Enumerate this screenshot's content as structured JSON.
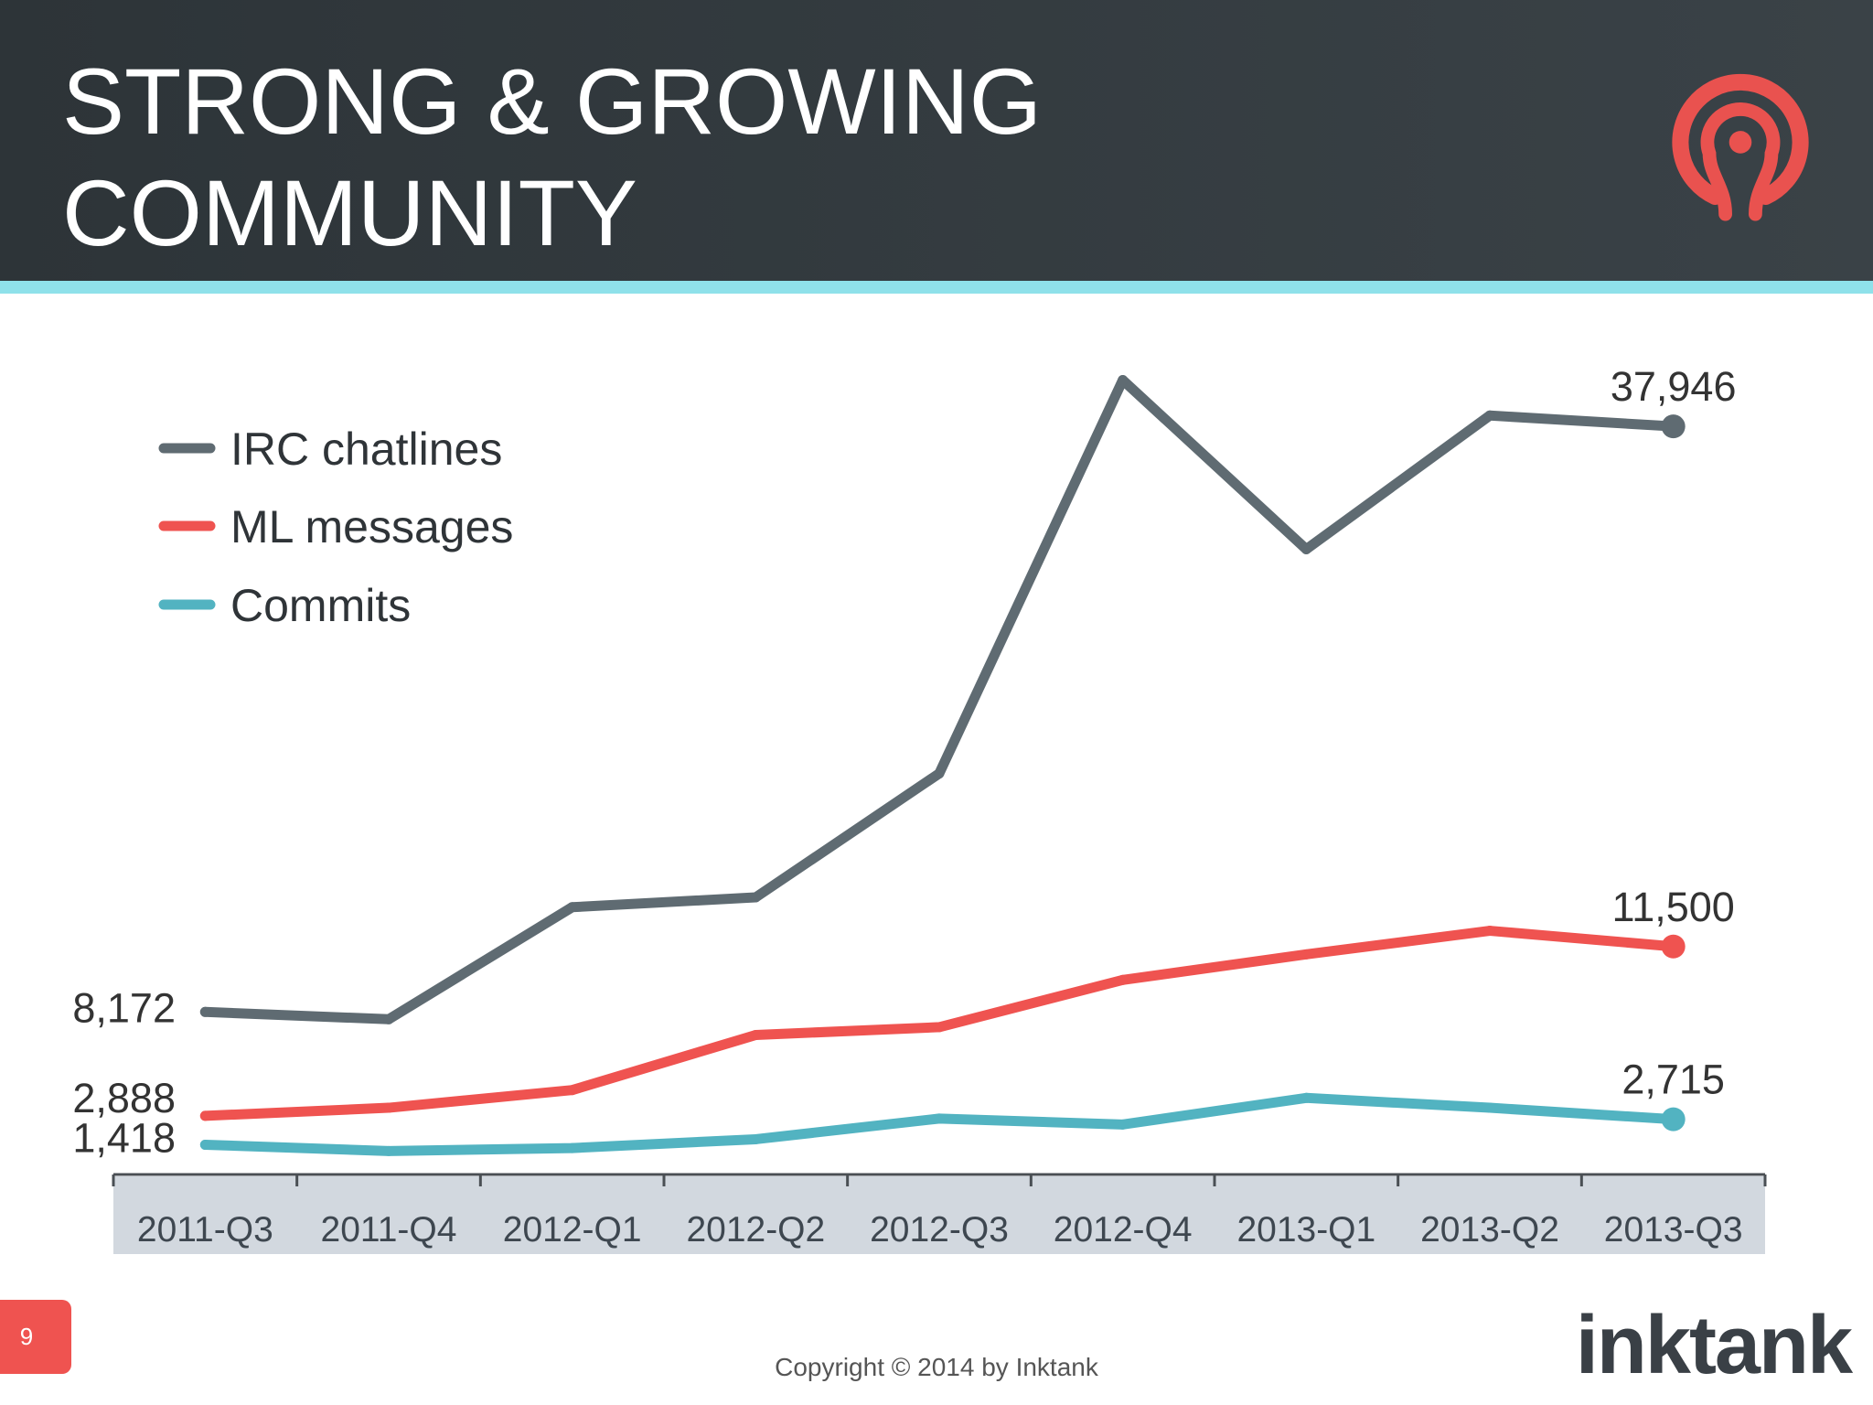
{
  "slide": {
    "title_lines": [
      "STRONG & GROWING",
      "COMMUNITY"
    ],
    "logo_icon": "ceph-logo-icon",
    "page_number": "9",
    "copyright": "Copyright © 2014 by Inktank",
    "brand_wordmark": "inktank",
    "colors": {
      "header_bg": "#323a3f",
      "accent_stripe": "#8fe1ea",
      "logo": "#e9524f",
      "page_badge": "#ef5350",
      "axis_band": "#d2d8df",
      "axis_line": "#4a4f54"
    }
  },
  "chart_data": {
    "type": "line",
    "categories": [
      "2011-Q3",
      "2011-Q4",
      "2012-Q1",
      "2012-Q2",
      "2012-Q3",
      "2012-Q4",
      "2013-Q1",
      "2013-Q2",
      "2013-Q3"
    ],
    "series": [
      {
        "name": "IRC chatlines",
        "color": "#5f6b72",
        "values": [
          8172,
          7800,
          13500,
          14000,
          20300,
          40300,
          31700,
          38500,
          37946
        ],
        "start_label": "8,172",
        "end_label": "37,946"
      },
      {
        "name": "ML messages",
        "color": "#ef5350",
        "values": [
          2888,
          3300,
          4200,
          7000,
          7400,
          9800,
          11100,
          12300,
          11500
        ],
        "start_label": "2,888",
        "end_label": "11,500"
      },
      {
        "name": "Commits",
        "color": "#52b3c1",
        "values": [
          1418,
          1100,
          1250,
          1700,
          2750,
          2450,
          3800,
          3300,
          2715
        ],
        "start_label": "1,418",
        "end_label": "2,715"
      }
    ],
    "ylim": [
      0,
      42000
    ],
    "grid": false,
    "legend": "top-left"
  }
}
